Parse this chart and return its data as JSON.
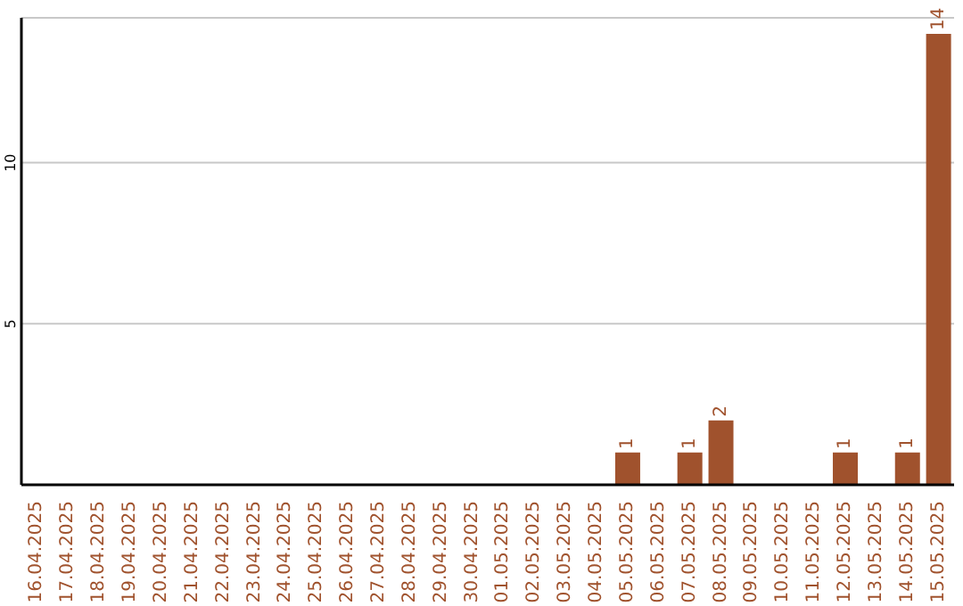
{
  "chart_data": {
    "type": "bar",
    "categories": [
      "16.04.2025",
      "17.04.2025",
      "18.04.2025",
      "19.04.2025",
      "20.04.2025",
      "21.04.2025",
      "22.04.2025",
      "23.04.2025",
      "24.04.2025",
      "25.04.2025",
      "26.04.2025",
      "27.04.2025",
      "28.04.2025",
      "29.04.2025",
      "30.04.2025",
      "01.05.2025",
      "02.05.2025",
      "03.05.2025",
      "04.05.2025",
      "05.05.2025",
      "06.05.2025",
      "07.05.2025",
      "08.05.2025",
      "09.05.2025",
      "10.05.2025",
      "11.05.2025",
      "12.05.2025",
      "13.05.2025",
      "14.05.2025",
      "15.05.2025"
    ],
    "values": [
      0,
      0,
      0,
      0,
      0,
      0,
      0,
      0,
      0,
      0,
      0,
      0,
      0,
      0,
      0,
      0,
      0,
      0,
      0,
      1,
      0,
      1,
      2,
      0,
      0,
      0,
      1,
      0,
      1,
      14
    ],
    "value_labels": [
      null,
      null,
      null,
      null,
      null,
      null,
      null,
      null,
      null,
      null,
      null,
      null,
      null,
      null,
      null,
      null,
      null,
      null,
      null,
      "1",
      null,
      "1",
      "2",
      null,
      null,
      null,
      "1",
      null,
      "1",
      "14"
    ],
    "color": "#a0522d",
    "ylim": [
      0,
      14.5
    ],
    "yticks": [
      5,
      10
    ],
    "grid": "y"
  }
}
